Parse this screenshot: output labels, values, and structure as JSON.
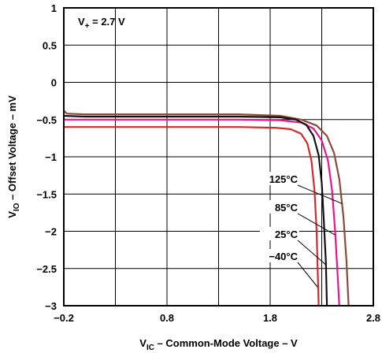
{
  "chart_data": {
    "type": "line",
    "xlabel": "V_IC – Common-Mode Voltage – V",
    "ylabel": "V_IO – Offset Voltage – mV",
    "xlabel_parts": {
      "main": "V",
      "sub": "IC",
      "rest": " – Common-Mode Voltage – V"
    },
    "ylabel_parts": {
      "main": "V",
      "sub": "IO",
      "rest": " – Offset Voltage – mV"
    },
    "annotation": {
      "main": "V",
      "sub": "+",
      "rest": " = 2.7 V"
    },
    "xlim": [
      -0.2,
      2.8
    ],
    "ylim": [
      -3,
      1
    ],
    "xticks": [
      -0.2,
      0.8,
      1.8,
      2.8
    ],
    "xtick_labels": [
      "−0.2",
      "0.8",
      "1.8",
      "2.8"
    ],
    "yticks": [
      1,
      0.5,
      0,
      -0.5,
      -1,
      -1.5,
      -2,
      -2.5,
      -3
    ],
    "ytick_labels": [
      "1",
      "0.5",
      "0",
      "−0.5",
      "−1",
      "−1.5",
      "−2",
      "−2.5",
      "−3"
    ],
    "x_grid_step": 0.5,
    "grid": true,
    "series": [
      {
        "name": "125°C",
        "color": "#8b4a3a",
        "points": [
          [
            -0.2,
            -0.38
          ],
          [
            -0.17,
            -0.42
          ],
          [
            0,
            -0.43
          ],
          [
            0.5,
            -0.43
          ],
          [
            1.0,
            -0.43
          ],
          [
            1.5,
            -0.43
          ],
          [
            1.9,
            -0.45
          ],
          [
            2.1,
            -0.5
          ],
          [
            2.25,
            -0.58
          ],
          [
            2.35,
            -0.72
          ],
          [
            2.42,
            -0.95
          ],
          [
            2.47,
            -1.3
          ],
          [
            2.51,
            -1.8
          ],
          [
            2.54,
            -2.4
          ],
          [
            2.56,
            -3.0
          ]
        ]
      },
      {
        "name": "85°C",
        "color": "#e8158c",
        "points": [
          [
            -0.2,
            -0.5
          ],
          [
            0,
            -0.5
          ],
          [
            0.5,
            -0.5
          ],
          [
            1.0,
            -0.5
          ],
          [
            1.5,
            -0.5
          ],
          [
            1.9,
            -0.51
          ],
          [
            2.1,
            -0.54
          ],
          [
            2.22,
            -0.62
          ],
          [
            2.3,
            -0.78
          ],
          [
            2.36,
            -1.05
          ],
          [
            2.4,
            -1.45
          ],
          [
            2.43,
            -2.0
          ],
          [
            2.45,
            -2.5
          ],
          [
            2.47,
            -3.0
          ]
        ]
      },
      {
        "name": "25°C",
        "color": "#111111",
        "points": [
          [
            -0.2,
            -0.45
          ],
          [
            0,
            -0.46
          ],
          [
            0.5,
            -0.46
          ],
          [
            1.0,
            -0.46
          ],
          [
            1.5,
            -0.46
          ],
          [
            1.9,
            -0.47
          ],
          [
            2.05,
            -0.5
          ],
          [
            2.15,
            -0.57
          ],
          [
            2.22,
            -0.72
          ],
          [
            2.27,
            -0.98
          ],
          [
            2.3,
            -1.35
          ],
          [
            2.32,
            -1.85
          ],
          [
            2.34,
            -2.4
          ],
          [
            2.35,
            -3.0
          ]
        ]
      },
      {
        "name": "−40°C",
        "color": "#d42a2a",
        "points": [
          [
            -0.2,
            -0.6
          ],
          [
            0,
            -0.6
          ],
          [
            0.5,
            -0.6
          ],
          [
            1.0,
            -0.6
          ],
          [
            1.5,
            -0.6
          ],
          [
            1.85,
            -0.61
          ],
          [
            2.0,
            -0.63
          ],
          [
            2.1,
            -0.69
          ],
          [
            2.16,
            -0.82
          ],
          [
            2.2,
            -1.05
          ],
          [
            2.23,
            -1.45
          ],
          [
            2.25,
            -2.0
          ],
          [
            2.26,
            -2.5
          ],
          [
            2.27,
            -3.0
          ]
        ]
      }
    ],
    "curve_labels": [
      {
        "text": "125°C",
        "series": 0,
        "target": [
          2.5,
          -1.63
        ]
      },
      {
        "text": "85°C",
        "series": 1,
        "target": [
          2.43,
          -2.05
        ]
      },
      {
        "text": "25°C",
        "series": 2,
        "target": [
          2.34,
          -2.45
        ]
      },
      {
        "text": "−40°C",
        "series": 3,
        "target": [
          2.26,
          -2.75
        ]
      }
    ]
  }
}
